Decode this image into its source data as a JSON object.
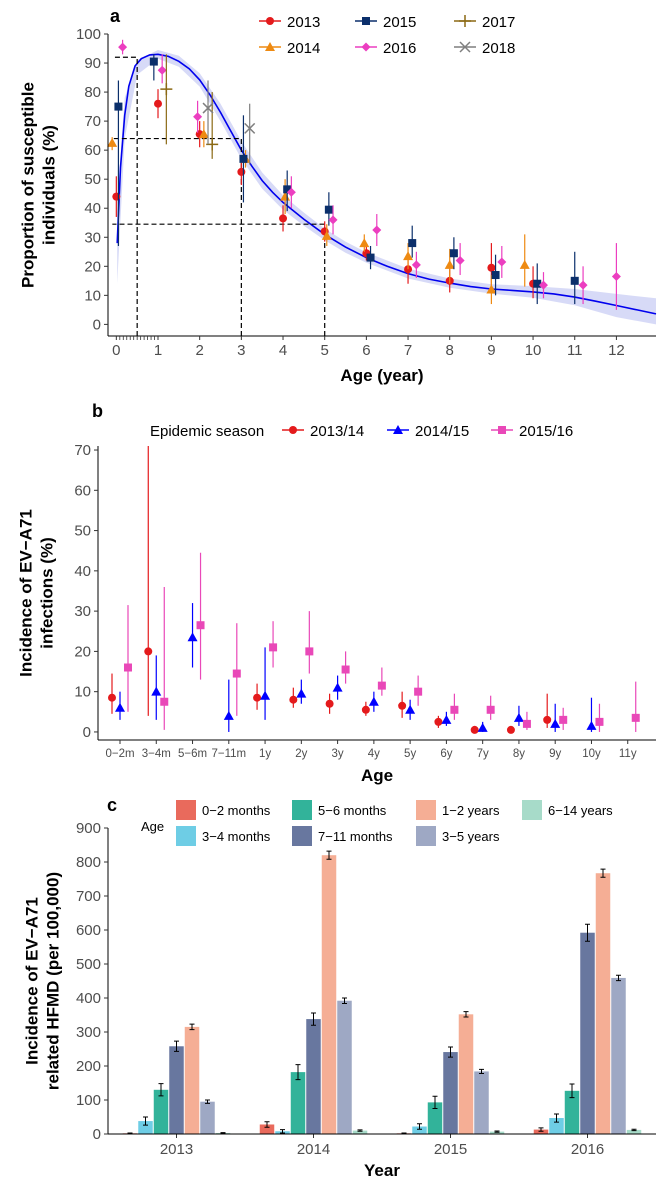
{
  "chart_data": [
    {
      "panel": "a",
      "type": "scatter",
      "xlabel": "Age (year)",
      "ylabel_lines": [
        "Proportion of susceptible",
        "individuals  (%)"
      ],
      "xlim": [
        -0.2,
        12.95
      ],
      "ylim": [
        -4,
        100
      ],
      "xticks": [
        0,
        1,
        2,
        3,
        4,
        5,
        6,
        7,
        8,
        9,
        10,
        11,
        12
      ],
      "yticks": [
        0,
        10,
        20,
        30,
        40,
        50,
        60,
        70,
        80,
        90,
        100
      ],
      "legend_position": "top",
      "fit_curve": {
        "color": "#0000ee",
        "points": [
          [
            0.02,
            28
          ],
          [
            0.1,
            54
          ],
          [
            0.2,
            72
          ],
          [
            0.3,
            82
          ],
          [
            0.45,
            89
          ],
          [
            0.6,
            91.5
          ],
          [
            0.8,
            92.8
          ],
          [
            1,
            93
          ],
          [
            1.25,
            92.3
          ],
          [
            1.5,
            90.6
          ],
          [
            1.75,
            88
          ],
          [
            2,
            84.2
          ],
          [
            2.25,
            79
          ],
          [
            2.5,
            73
          ],
          [
            2.75,
            66.5
          ],
          [
            3,
            60
          ],
          [
            3.25,
            54.5
          ],
          [
            3.5,
            49.5
          ],
          [
            3.75,
            45.5
          ],
          [
            4,
            42
          ],
          [
            4.5,
            36.2
          ],
          [
            5,
            31
          ],
          [
            5.5,
            26.6
          ],
          [
            6,
            23
          ],
          [
            6.5,
            20
          ],
          [
            7,
            17.5
          ],
          [
            7.5,
            15.6
          ],
          [
            8,
            14.2
          ],
          [
            8.5,
            13
          ],
          [
            9,
            12.2
          ],
          [
            9.5,
            11.7
          ],
          [
            10,
            11.2
          ],
          [
            10.5,
            10.5
          ],
          [
            11,
            9.4
          ],
          [
            11.5,
            8
          ],
          [
            12,
            6.5
          ],
          [
            12.5,
            5
          ],
          [
            12.95,
            3.6
          ]
        ],
        "ci_upper": [
          [
            0.02,
            42
          ],
          [
            0.2,
            78
          ],
          [
            0.5,
            91
          ],
          [
            1,
            94.5
          ],
          [
            1.5,
            92.5
          ],
          [
            2,
            86.5
          ],
          [
            2.5,
            76
          ],
          [
            3,
            63
          ],
          [
            3.5,
            52.3
          ],
          [
            4,
            44.5
          ],
          [
            4.5,
            38.5
          ],
          [
            5,
            33
          ],
          [
            5.5,
            28.5
          ],
          [
            6,
            24.8
          ],
          [
            7,
            19.2
          ],
          [
            8,
            15.8
          ],
          [
            9,
            13.8
          ],
          [
            10,
            13.2
          ],
          [
            11,
            12.2
          ],
          [
            12,
            10.5
          ],
          [
            12.95,
            9
          ]
        ]
      },
      "ci_lower": [
        [
          0.02,
          14
        ],
        [
          0.2,
          64
        ],
        [
          0.5,
          86
        ],
        [
          1,
          91.5
        ],
        [
          1.5,
          88.7
        ],
        [
          2,
          81.9
        ],
        [
          2.5,
          70
        ],
        [
          3,
          57
        ],
        [
          3.5,
          46.7
        ],
        [
          4,
          39.5
        ],
        [
          4.5,
          34
        ],
        [
          5,
          29
        ],
        [
          5.5,
          24.7
        ],
        [
          6,
          21.2
        ],
        [
          7,
          15.8
        ],
        [
          8,
          12.6
        ],
        [
          9,
          10.6
        ],
        [
          10,
          9.2
        ],
        [
          11,
          6.6
        ],
        [
          12,
          2.5
        ],
        [
          12.95,
          0
        ]
      ],
      "reference_lines": [
        {
          "age": 0.5,
          "value": 92
        },
        {
          "age": 3,
          "value": 64
        },
        {
          "age": 5,
          "value": 34.5
        }
      ],
      "series": [
        {
          "name": "2013",
          "color": "#e41a1c",
          "marker": "circle",
          "points": [
            [
              0,
              44,
              37,
              51
            ],
            [
              1,
              76,
              71,
              81
            ],
            [
              2,
              65.5,
              61,
              70
            ],
            [
              3,
              52.5,
              48,
              57
            ],
            [
              4,
              36.5,
              32,
              41
            ],
            [
              5,
              32,
              28.5,
              35.5
            ],
            [
              6,
              24.5,
              22,
              27
            ],
            [
              7,
              19,
              14,
              24
            ],
            [
              8,
              15,
              11,
              19
            ],
            [
              9,
              19.5,
              12,
              28
            ],
            [
              10,
              14,
              9,
              20
            ]
          ]
        },
        {
          "name": "2014",
          "color": "#ee8a12",
          "marker": "triangle",
          "points": [
            [
              -0.1,
              62.5,
              60,
              64.5
            ],
            [
              2.1,
              65.5,
              61,
              70
            ],
            [
              3.1,
              57,
              54,
              60
            ],
            [
              4.05,
              44,
              38,
              50
            ],
            [
              5.05,
              30.5,
              27,
              34.5
            ],
            [
              5.95,
              28,
              25,
              31
            ],
            [
              7,
              23.5,
              19,
              28
            ],
            [
              8,
              20.5,
              14,
              26
            ],
            [
              9,
              12,
              7,
              17
            ],
            [
              9.8,
              20.5,
              13,
              31
            ]
          ]
        },
        {
          "name": "2015",
          "color": "#0b2f6b",
          "marker": "square",
          "points": [
            [
              0.05,
              75,
              27,
              84
            ],
            [
              0.9,
              90.5,
              84,
              93
            ],
            [
              3.05,
              57,
              42,
              72
            ],
            [
              4.1,
              46.5,
              39,
              53
            ],
            [
              5.1,
              39.5,
              34,
              45.5
            ],
            [
              6.1,
              23,
              19,
              27
            ],
            [
              7.1,
              28,
              23,
              34
            ],
            [
              8.1,
              24.5,
              19,
              30
            ],
            [
              9.1,
              17,
              10,
              24
            ],
            [
              10.1,
              14,
              7,
              21
            ],
            [
              11,
              15,
              7,
              25
            ]
          ]
        },
        {
          "name": "2016",
          "color": "#ec3ec0",
          "marker": "diamond",
          "points": [
            [
              0.15,
              95.5,
              93,
              98
            ],
            [
              1.1,
              87.5,
              83,
              93
            ],
            [
              1.95,
              71.5,
              66,
              77
            ],
            [
              4.2,
              45.5,
              40,
              51
            ],
            [
              5.2,
              36,
              31,
              41
            ],
            [
              6.25,
              32.5,
              27,
              38
            ],
            [
              7.2,
              20.5,
              16,
              25
            ],
            [
              8.25,
              22,
              17,
              28
            ],
            [
              9.25,
              21.5,
              16,
              27
            ],
            [
              10.25,
              13.5,
              9,
              18
            ],
            [
              11.2,
              13.5,
              7,
              20
            ],
            [
              12,
              16.5,
              5,
              28
            ]
          ]
        },
        {
          "name": "2017",
          "color": "#8b6914",
          "marker": "plus",
          "points": [
            [
              1.2,
              81,
              62,
              93
            ],
            [
              2.3,
              62,
              57,
              80
            ]
          ]
        },
        {
          "name": "2018",
          "color": "#7f7f7f",
          "marker": "cross",
          "points": [
            [
              2.2,
              74.5,
              62,
              84
            ],
            [
              3.2,
              67.5,
              55,
              76
            ]
          ]
        }
      ]
    },
    {
      "panel": "b",
      "type": "scatter",
      "xlabel": "Age",
      "ylabel_lines": [
        "Incidence of EV−A71",
        "infections (%)"
      ],
      "ylim": [
        -2,
        71
      ],
      "yticks": [
        0,
        10,
        20,
        30,
        40,
        50,
        60,
        70
      ],
      "categories": [
        "0−2m",
        "3−4m",
        "5−6m",
        "7−11m",
        "1y",
        "2y",
        "3y",
        "4y",
        "5y",
        "6y",
        "7y",
        "8y",
        "9y",
        "10y",
        "11y"
      ],
      "legend_title": "Epidemic season",
      "legend_position": "top",
      "series": [
        {
          "name": "2013/14",
          "color": "#e41a1c",
          "marker": "circle",
          "points": [
            [
              0,
              8.5,
              4.5,
              14.5
            ],
            [
              1,
              20,
              4,
              71
            ],
            null,
            null,
            [
              4,
              8.5,
              5.5,
              12
            ],
            [
              5,
              8,
              6,
              11
            ],
            [
              6,
              7,
              4.5,
              9.5
            ],
            [
              7,
              5.5,
              4,
              7.5
            ],
            [
              8,
              6.5,
              3.5,
              10
            ],
            [
              9,
              2.5,
              1,
              4
            ],
            [
              10,
              0.5,
              0,
              1.5
            ],
            [
              11,
              0.5,
              0,
              1.5
            ],
            [
              12,
              3,
              1,
              9.5
            ],
            null,
            null
          ]
        },
        {
          "name": "2014/15",
          "color": "#0000ff",
          "marker": "triangle",
          "points": [
            [
              0,
              6,
              3,
              10
            ],
            [
              1,
              10,
              3,
              19
            ],
            [
              2,
              23.5,
              16,
              32
            ],
            [
              3,
              4,
              0,
              13
            ],
            [
              4,
              9,
              3,
              21
            ],
            [
              5,
              9.5,
              7,
              13
            ],
            [
              6,
              11,
              8,
              14
            ],
            [
              7,
              7.5,
              5,
              10
            ],
            [
              8,
              5.5,
              3,
              8
            ],
            [
              9,
              3,
              1.5,
              5
            ],
            [
              10,
              1,
              0,
              2.5
            ],
            [
              11,
              3.5,
              1.5,
              6.5
            ],
            [
              12,
              2,
              0,
              7
            ],
            [
              13,
              1.5,
              0,
              8.5
            ],
            null
          ]
        },
        {
          "name": "2015/16",
          "color": "#e948b8",
          "marker": "square",
          "points": [
            [
              0,
              16,
              5,
              31.5
            ],
            [
              1,
              7.5,
              0.5,
              36
            ],
            [
              2,
              26.5,
              13,
              44.5
            ],
            [
              3,
              14.5,
              4,
              27
            ],
            [
              4,
              21,
              16,
              27.5
            ],
            [
              5,
              20,
              14.5,
              30
            ],
            [
              6,
              15.5,
              12,
              20
            ],
            [
              7,
              11.5,
              9,
              16
            ],
            [
              8,
              10,
              6.5,
              14
            ],
            [
              9,
              5.5,
              3,
              9.5
            ],
            [
              10,
              5.5,
              3,
              9
            ],
            [
              11,
              2,
              0.5,
              5
            ],
            [
              12,
              3,
              0.5,
              6
            ],
            [
              13,
              2.5,
              0,
              7
            ],
            [
              14,
              3.5,
              0,
              12.5
            ]
          ]
        }
      ]
    },
    {
      "panel": "c",
      "type": "bar",
      "xlabel": "Year",
      "ylabel_lines": [
        "Incidence of EV−A71",
        "related HFMD (per 100,000)"
      ],
      "ylim": [
        0,
        900
      ],
      "yticks": [
        0,
        100,
        200,
        300,
        400,
        500,
        600,
        700,
        800,
        900
      ],
      "categories": [
        "2013",
        "2014",
        "2015",
        "2016"
      ],
      "legend_title": "Age",
      "legend_position": "top",
      "series": [
        {
          "name": "0−2 months",
          "color": "#e96a5c",
          "values": [
            2,
            28,
            2,
            13
          ],
          "err": [
            1,
            8,
            1,
            5
          ]
        },
        {
          "name": "3−4 months",
          "color": "#6ecde5",
          "values": [
            38,
            8,
            22,
            47
          ],
          "err": [
            12,
            5,
            8,
            12
          ]
        },
        {
          "name": "5−6 months",
          "color": "#32b39a",
          "values": [
            130,
            182,
            93,
            127
          ],
          "err": [
            18,
            22,
            18,
            20
          ]
        },
        {
          "name": "7−11 months",
          "color": "#68779f",
          "values": [
            258,
            338,
            241,
            592
          ],
          "err": [
            15,
            18,
            15,
            25
          ]
        },
        {
          "name": "1−2 years",
          "color": "#f5ae95",
          "values": [
            315,
            820,
            352,
            767
          ],
          "err": [
            8,
            12,
            8,
            12
          ]
        },
        {
          "name": "3−5 years",
          "color": "#9ea8c4",
          "values": [
            95,
            392,
            184,
            459
          ],
          "err": [
            5,
            8,
            6,
            8
          ]
        },
        {
          "name": "6−14 years",
          "color": "#a7dbc9",
          "values": [
            3,
            10,
            7,
            12
          ],
          "err": [
            1,
            2,
            2,
            2
          ]
        }
      ]
    }
  ]
}
